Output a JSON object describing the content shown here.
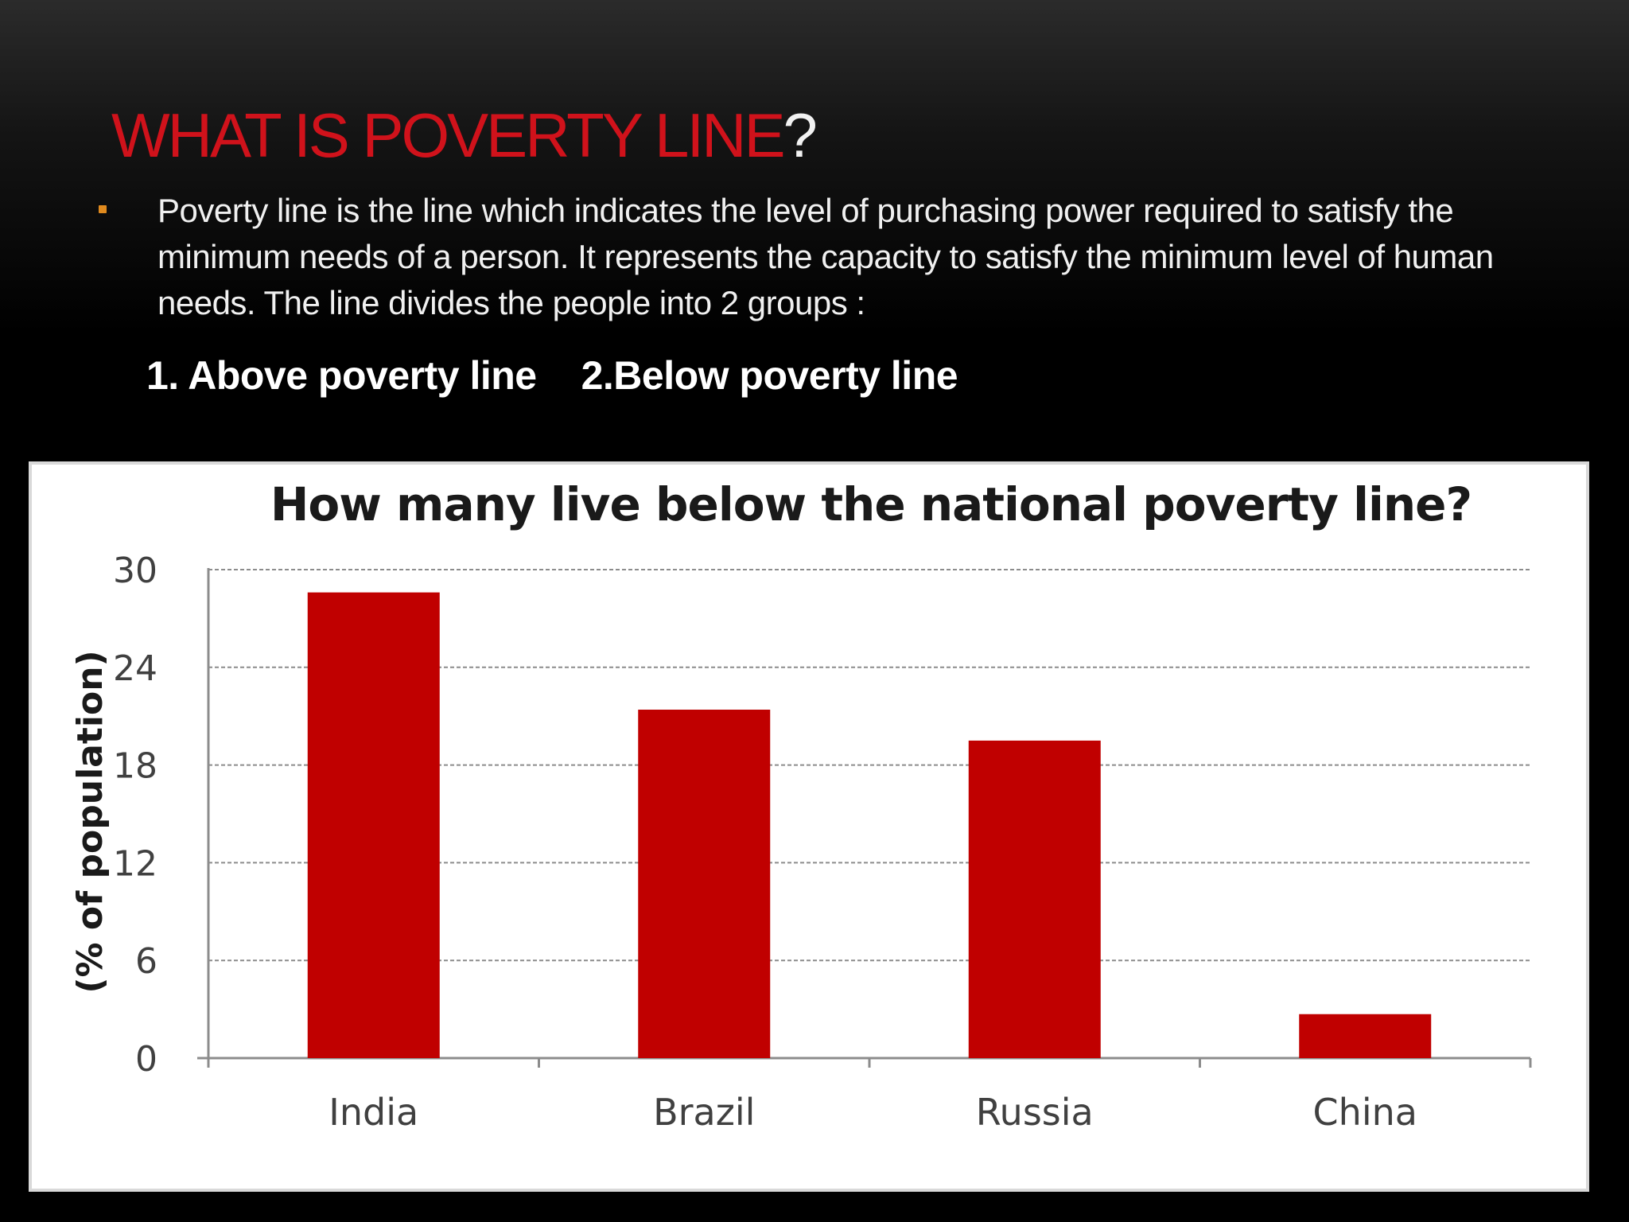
{
  "slide": {
    "title_main": "WHAT IS POVERTY LINE",
    "title_suffix": "?",
    "bullet_text": "Poverty line is the line which indicates the level of purchasing power required to satisfy the minimum needs of a person. It represents the capacity to satisfy the minimum level of human needs. The line divides the people into 2 groups :",
    "group_1": "1. Above poverty line",
    "group_2": "2.Below poverty line"
  },
  "colors": {
    "title_red": "#d0121b",
    "bar_red": "#c00000",
    "bullet_orange": "#e08a1e",
    "chart_background": "#ffffff"
  },
  "chart_data": {
    "type": "bar",
    "title": "How many live below the national poverty line?",
    "xlabel": "",
    "ylabel": "(% of population)",
    "categories": [
      "India",
      "Brazil",
      "Russia",
      "China"
    ],
    "values": [
      28.6,
      21.4,
      19.5,
      2.7
    ],
    "yticks": [
      0,
      6,
      12,
      18,
      24,
      30
    ],
    "ylim": [
      0,
      30
    ],
    "grid": "horizontal dashed",
    "legend": "none"
  }
}
